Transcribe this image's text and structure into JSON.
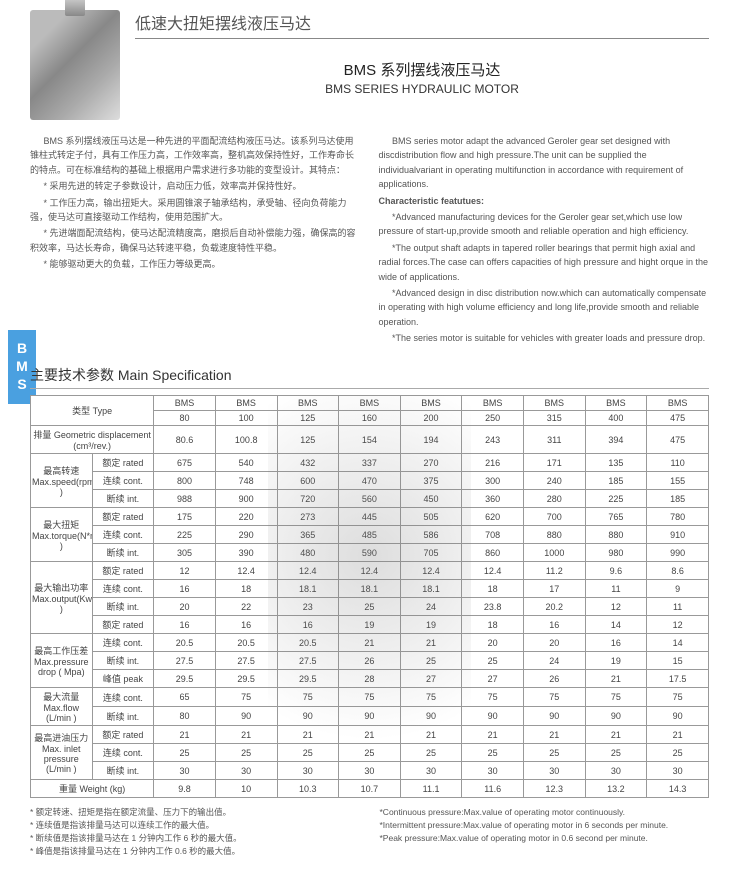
{
  "sideTab": "BMS",
  "header": {
    "cnTitle": "低速大扭矩摆线液压马达"
  },
  "subtitle": {
    "cn": "BMS 系列摆线液压马达",
    "en": "BMS SERIES HYDRAULIC MOTOR"
  },
  "descCn": [
    "BMS 系列摆线液压马达是一种先进的平面配流结构液压马达。该系列马达使用锥柱式转定子付，具有工作压力高，工作效率高，整机高效保持性好，工作寿命长的特点。可在标准结构的基础上根据用户需求进行多功能的变型设计。其特点：",
    "* 采用先进的转定子参数设计，启动压力低，效率高并保持性好。",
    "* 工作压力高，输出扭矩大。采用圆锥滚子轴承结构，承受轴、径向负荷能力强，使马达可直接驱动工作结构，使用范围扩大。",
    "* 先进端面配流结构，使马达配流精度高，磨损后自动补偿能力强，确保高的容积效率，马达长寿命，确保马达转速平稳，负载速度特性平稳。",
    "* 能够驱动更大的负载，工作压力等级更高。"
  ],
  "descEnHead": "Characteristic featutues:",
  "descEn": [
    "BMS series motor adapt the advanced Geroler gear set designed with discdistribution flow and high pressure.The unit can be supplied the individualvariant in operating multifunction in accordance with requirement of applications.",
    "*Advanced manufacturing devices for the Geroler gear set,which use low pressure of start-up,provide smooth and reliable operation and high efficiency.",
    "*The output shaft adapts in tapered roller bearings that permit high axial and radial forces.The case can offers capacities of high pressure and hight orque in the wide of applications.",
    "*Advanced design in disc distribution now.which can automatically compensate in operating with high volume efficiency and long life,provide smooth and reliable operation.",
    "*The series motor is suitable for vehicles with greater loads and pressure drop."
  ],
  "specTitle": "主要技术参数 Main Specification",
  "table": {
    "typeLabel": "类型 Type",
    "series": "BMS",
    "models": [
      "80",
      "100",
      "125",
      "160",
      "200",
      "250",
      "315",
      "400",
      "475"
    ],
    "displacementLabel": "排量 Geometric displacement (cm³/rev.)",
    "displacement": [
      "80.6",
      "100.8",
      "125",
      "154",
      "194",
      "243",
      "311",
      "394",
      "475"
    ],
    "groups": [
      {
        "label": "最高转速 Max.speed(rpm )",
        "rows": [
          {
            "t": "额定 rated",
            "v": [
              "675",
              "540",
              "432",
              "337",
              "270",
              "216",
              "171",
              "135",
              "110"
            ]
          },
          {
            "t": "连续 cont.",
            "v": [
              "800",
              "748",
              "600",
              "470",
              "375",
              "300",
              "240",
              "185",
              "155"
            ]
          },
          {
            "t": "断续 int.",
            "v": [
              "988",
              "900",
              "720",
              "560",
              "450",
              "360",
              "280",
              "225",
              "185"
            ]
          }
        ]
      },
      {
        "label": "最大扭矩 Max.torque(N*m )",
        "rows": [
          {
            "t": "额定 rated",
            "v": [
              "175",
              "220",
              "273",
              "445",
              "505",
              "620",
              "700",
              "765",
              "780"
            ]
          },
          {
            "t": "连续 cont.",
            "v": [
              "225",
              "290",
              "365",
              "485",
              "586",
              "708",
              "880",
              "880",
              "910"
            ]
          },
          {
            "t": "断续 int.",
            "v": [
              "305",
              "390",
              "480",
              "590",
              "705",
              "860",
              "1000",
              "980",
              "990"
            ]
          }
        ]
      },
      {
        "label": "最大输出功率 Max.output(Kw )",
        "rows": [
          {
            "t": "额定 rated",
            "v": [
              "12",
              "12.4",
              "12.4",
              "12.4",
              "12.4",
              "12.4",
              "11.2",
              "9.6",
              "8.6"
            ]
          },
          {
            "t": "连续 cont.",
            "v": [
              "16",
              "18",
              "18.1",
              "18.1",
              "18.1",
              "18",
              "17",
              "11",
              "9"
            ]
          },
          {
            "t": "断续 int.",
            "v": [
              "20",
              "22",
              "23",
              "25",
              "24",
              "23.8",
              "20.2",
              "12",
              "11"
            ]
          },
          {
            "t": "额定 rated",
            "v": [
              "16",
              "16",
              "16",
              "19",
              "19",
              "18",
              "16",
              "14",
              "12"
            ]
          }
        ]
      },
      {
        "label": "最高工作压差 Max.pressure drop ( Mpa)",
        "rows": [
          {
            "t": "连续 cont.",
            "v": [
              "20.5",
              "20.5",
              "20.5",
              "21",
              "21",
              "20",
              "20",
              "16",
              "14"
            ]
          },
          {
            "t": "断续 int.",
            "v": [
              "27.5",
              "27.5",
              "27.5",
              "26",
              "25",
              "25",
              "24",
              "19",
              "15"
            ]
          },
          {
            "t": "峰值 peak",
            "v": [
              "29.5",
              "29.5",
              "29.5",
              "28",
              "27",
              "27",
              "26",
              "21",
              "17.5"
            ]
          }
        ]
      },
      {
        "label": "最大流量 Max.flow (L/min )",
        "rows": [
          {
            "t": "连续 cont.",
            "v": [
              "65",
              "75",
              "75",
              "75",
              "75",
              "75",
              "75",
              "75",
              "75"
            ]
          },
          {
            "t": "断续 int.",
            "v": [
              "80",
              "90",
              "90",
              "90",
              "90",
              "90",
              "90",
              "90",
              "90"
            ]
          }
        ]
      },
      {
        "label": "最高进油压力 Max. inlet pressure (L/min )",
        "rows": [
          {
            "t": "额定 rated",
            "v": [
              "21",
              "21",
              "21",
              "21",
              "21",
              "21",
              "21",
              "21",
              "21"
            ]
          },
          {
            "t": "连续 cont.",
            "v": [
              "25",
              "25",
              "25",
              "25",
              "25",
              "25",
              "25",
              "25",
              "25"
            ]
          },
          {
            "t": "断续 int.",
            "v": [
              "30",
              "30",
              "30",
              "30",
              "30",
              "30",
              "30",
              "30",
              "30"
            ]
          }
        ]
      }
    ],
    "weightLabel": "重量 Weight (kg)",
    "weight": [
      "9.8",
      "10",
      "10.3",
      "10.7",
      "11.1",
      "11.6",
      "12.3",
      "13.2",
      "14.3"
    ]
  },
  "notesCn": [
    "* 额定转速、扭矩是指在额定流量、压力下的输出值。",
    "* 连续值是指该排量马达可以连续工作的最大值。",
    "* 断续值是指该排量马达在 1 分钟内工作 6 秒的最大值。",
    "* 峰值是指该排量马达在 1 分钟内工作 0.6 秒的最大值。"
  ],
  "notesEn": [
    "*Continuous pressure:Max.value of operating motor continuously.",
    "*Intermittent pressure:Max.value of operating motor in 6 seconds per minute.",
    "*Peak pressure:Max.value of operating motor in 0.6 second per minute."
  ]
}
